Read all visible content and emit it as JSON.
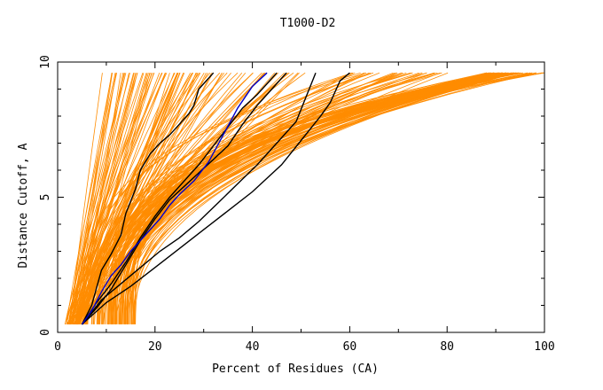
{
  "chart_data": {
    "type": "line",
    "title": "T1000-D2",
    "xlabel": "Percent of Residues (CA)",
    "ylabel": "Distance Cutoff, A",
    "xlim": [
      0,
      100
    ],
    "ylim": [
      0,
      10
    ],
    "x_ticks": [
      0,
      20,
      40,
      60,
      80,
      100
    ],
    "y_ticks": [
      0,
      5,
      10
    ],
    "grid": false,
    "colors": {
      "background_series": "#ff8c00",
      "highlight_series": "#000000",
      "reference_series": "#0000cc"
    },
    "background_bundles": [
      {
        "start_x": [
          1.5,
          4.5
        ],
        "top_x": [
          9,
          32
        ],
        "power": [
          0.85,
          1.2
        ],
        "count": 60
      },
      {
        "start_x": [
          3,
          6
        ],
        "top_x": [
          27,
          52
        ],
        "power": [
          1.0,
          1.7
        ],
        "count": 35
      },
      {
        "start_x": [
          5,
          14
        ],
        "top_x": [
          60,
          82
        ],
        "power": [
          1.8,
          3.2
        ],
        "count": 35
      },
      {
        "start_x": [
          8,
          16
        ],
        "top_x": [
          88,
          95
        ],
        "power": [
          2.2,
          3.5
        ],
        "count": 60
      },
      {
        "start_x": [
          10,
          16
        ],
        "top_x": [
          95,
          100
        ],
        "power": [
          2.0,
          4.0
        ],
        "count": 12
      }
    ],
    "highlight_series": [
      {
        "x": [
          5,
          7,
          9,
          11,
          13,
          14,
          16,
          17,
          19,
          21,
          23,
          25,
          27,
          28,
          29,
          30,
          32
        ],
        "y": [
          0.3,
          1.0,
          2.3,
          2.9,
          3.6,
          4.4,
          5.3,
          6.0,
          6.6,
          7.0,
          7.3,
          7.7,
          8.1,
          8.4,
          9.0,
          9.2,
          9.6
        ]
      },
      {
        "x": [
          5,
          8,
          11,
          14,
          17,
          20,
          23,
          26,
          29,
          32,
          35,
          38,
          41,
          45
        ],
        "y": [
          0.3,
          1.1,
          1.8,
          2.6,
          3.5,
          4.3,
          5.0,
          5.6,
          6.2,
          6.9,
          7.6,
          8.3,
          8.8,
          9.6
        ]
      },
      {
        "x": [
          5,
          8,
          11,
          14,
          17,
          20,
          23,
          26,
          29,
          32,
          35,
          38,
          41,
          44,
          47
        ],
        "y": [
          0.3,
          0.9,
          1.6,
          2.5,
          3.4,
          4.2,
          4.9,
          5.4,
          5.9,
          6.4,
          6.9,
          7.7,
          8.4,
          9.0,
          9.6
        ]
      },
      {
        "x": [
          5,
          9,
          13,
          17,
          21,
          25,
          29,
          33,
          37,
          41,
          45,
          49,
          53
        ],
        "y": [
          0.3,
          1.2,
          1.8,
          2.4,
          3.0,
          3.5,
          4.1,
          4.8,
          5.5,
          6.2,
          7.0,
          7.8,
          9.6
        ]
      },
      {
        "x": [
          5,
          10,
          15,
          20,
          25,
          30,
          35,
          40,
          46,
          50,
          54,
          56,
          58,
          60
        ],
        "y": [
          0.3,
          1.1,
          1.7,
          2.4,
          3.1,
          3.8,
          4.5,
          5.2,
          6.2,
          7.1,
          8.0,
          8.5,
          9.3,
          9.6
        ]
      }
    ],
    "reference_series": [
      {
        "x": [
          5,
          7,
          9,
          11,
          13,
          15,
          17,
          19,
          21,
          23,
          25,
          28,
          31,
          34,
          37,
          40,
          43
        ],
        "y": [
          0.3,
          0.8,
          1.5,
          2.1,
          2.5,
          3.0,
          3.4,
          3.8,
          4.2,
          4.7,
          5.1,
          5.6,
          6.3,
          7.3,
          8.3,
          9.1,
          9.6
        ]
      }
    ]
  }
}
